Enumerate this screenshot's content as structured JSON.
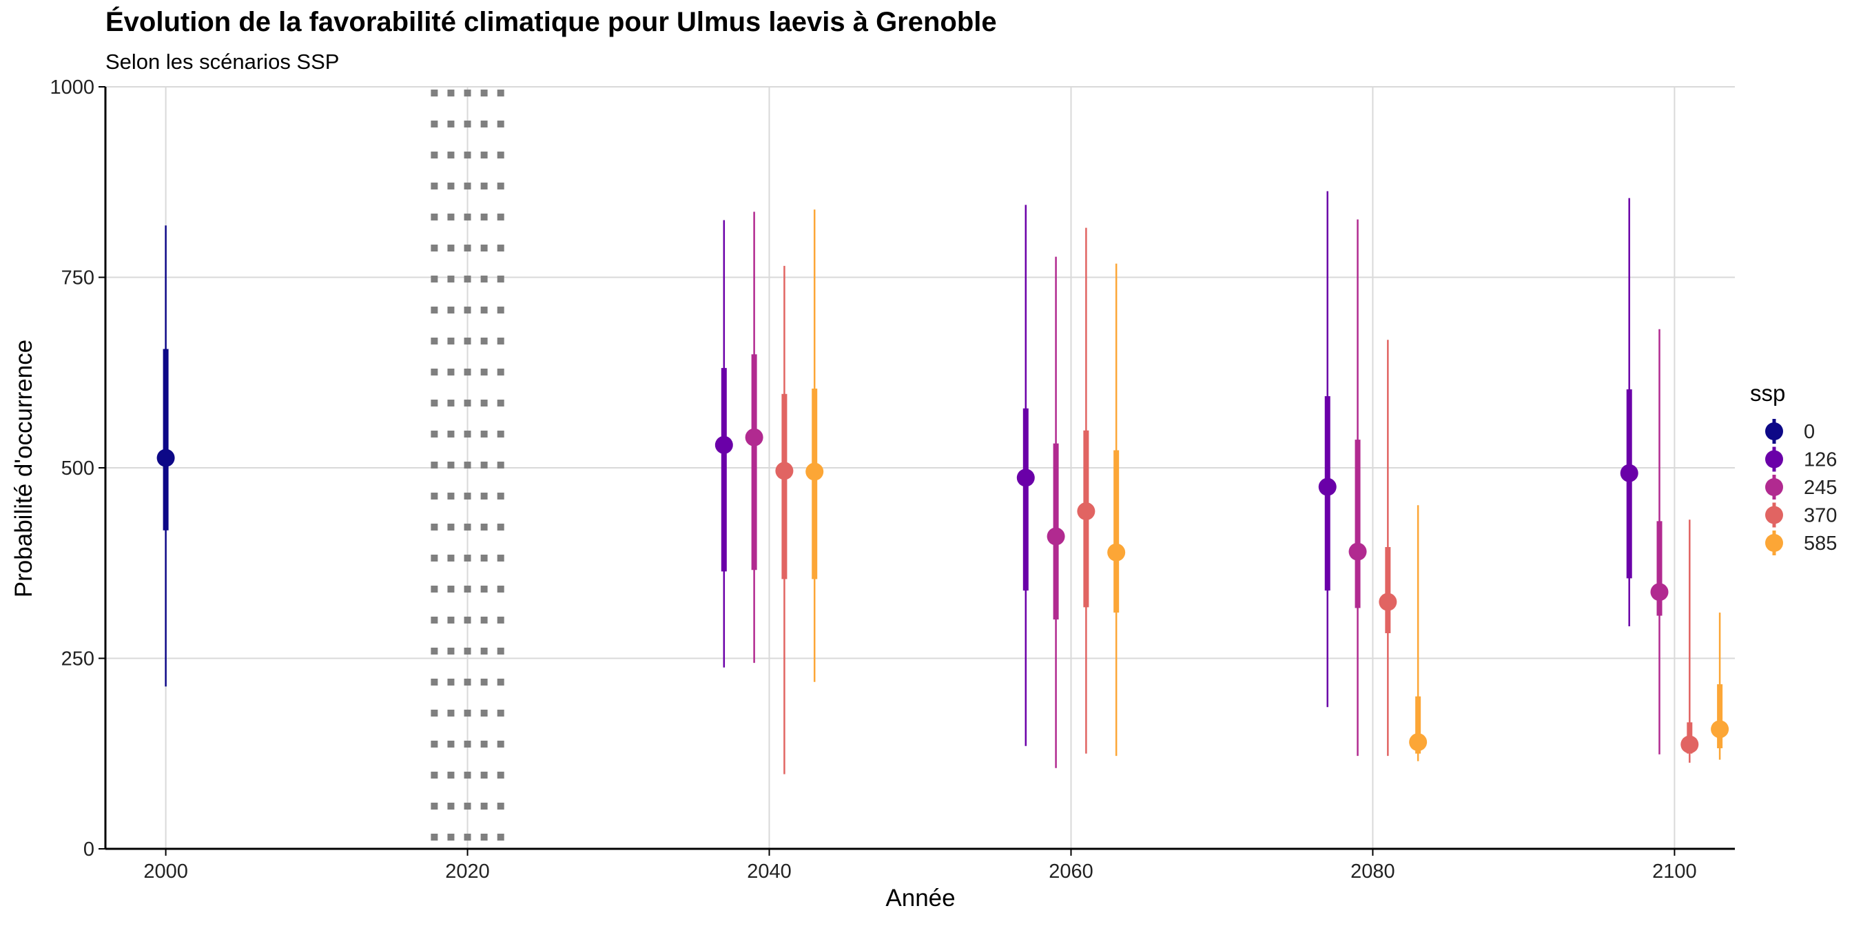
{
  "chart_data": {
    "type": "scatter",
    "title": "Évolution de la favorabilité climatique pour Ulmus laevis à Grenoble",
    "subtitle": "Selon les scénarios SSP",
    "xlabel": "Année",
    "ylabel": "Probabilité d'occurrence",
    "xlim": [
      1996,
      2104
    ],
    "ylim": [
      0,
      1000
    ],
    "x_ticks": [
      2000,
      2020,
      2040,
      2060,
      2080,
      2100
    ],
    "y_ticks": [
      0,
      250,
      500,
      750,
      1000
    ],
    "grid": true,
    "reference_band": {
      "x_from": 2017.8,
      "x_to": 2022.2,
      "style": "dotted"
    },
    "legend": {
      "title": "ssp",
      "position": "right"
    },
    "series": [
      {
        "name": "0",
        "color": "#0d0887",
        "points": [
          {
            "x": 2000,
            "y": 513,
            "low": 213,
            "high": 818,
            "q_low": 418,
            "q_high": 656
          }
        ]
      },
      {
        "name": "126",
        "color": "#6a00a8",
        "points": [
          {
            "x": 2037,
            "y": 530,
            "low": 238,
            "high": 825,
            "q_low": 364,
            "q_high": 631
          },
          {
            "x": 2057,
            "y": 487,
            "low": 135,
            "high": 845,
            "q_low": 339,
            "q_high": 578
          },
          {
            "x": 2077,
            "y": 475,
            "low": 186,
            "high": 863,
            "q_low": 339,
            "q_high": 594
          },
          {
            "x": 2097,
            "y": 493,
            "low": 292,
            "high": 854,
            "q_low": 355,
            "q_high": 603
          }
        ]
      },
      {
        "name": "245",
        "color": "#b12a90",
        "points": [
          {
            "x": 2039,
            "y": 540,
            "low": 244,
            "high": 836,
            "q_low": 366,
            "q_high": 649
          },
          {
            "x": 2059,
            "y": 410,
            "low": 106,
            "high": 777,
            "q_low": 301,
            "q_high": 532
          },
          {
            "x": 2079,
            "y": 390,
            "low": 122,
            "high": 826,
            "q_low": 316,
            "q_high": 537
          },
          {
            "x": 2099,
            "y": 337,
            "low": 124,
            "high": 682,
            "q_low": 306,
            "q_high": 430
          }
        ]
      },
      {
        "name": "370",
        "color": "#e16462",
        "points": [
          {
            "x": 2041,
            "y": 496,
            "low": 98,
            "high": 765,
            "q_low": 354,
            "q_high": 597
          },
          {
            "x": 2061,
            "y": 443,
            "low": 125,
            "high": 815,
            "q_low": 317,
            "q_high": 549
          },
          {
            "x": 2081,
            "y": 324,
            "low": 122,
            "high": 668,
            "q_low": 283,
            "q_high": 396
          },
          {
            "x": 2101,
            "y": 137,
            "low": 113,
            "high": 432,
            "q_low": 125,
            "q_high": 166
          }
        ]
      },
      {
        "name": "585",
        "color": "#fca636",
        "points": [
          {
            "x": 2043,
            "y": 495,
            "low": 219,
            "high": 839,
            "q_low": 354,
            "q_high": 604
          },
          {
            "x": 2063,
            "y": 389,
            "low": 122,
            "high": 768,
            "q_low": 310,
            "q_high": 523
          },
          {
            "x": 2083,
            "y": 140,
            "low": 115,
            "high": 451,
            "q_low": 125,
            "q_high": 200
          },
          {
            "x": 2103,
            "y": 157,
            "low": 117,
            "high": 310,
            "q_low": 132,
            "q_high": 216
          }
        ]
      }
    ]
  }
}
